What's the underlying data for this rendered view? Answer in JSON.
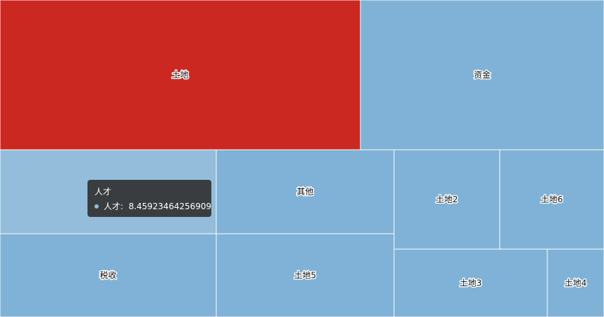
{
  "chart_data": {
    "type": "treemap",
    "colors": {
      "default": "#7fb2d6",
      "highlight": "#cc2822",
      "hover": "#93bdda",
      "border": "#ffffff"
    },
    "items": [
      {
        "name": "土地",
        "value": 30.8,
        "color": "#cc2822"
      },
      {
        "name": "资金",
        "value": 19.5
      },
      {
        "name": "人才",
        "value": 8.45923464256909,
        "hover": true
      },
      {
        "name": "税收",
        "value": 8.7
      },
      {
        "name": "其他",
        "value": 8.6
      },
      {
        "name": "土地5",
        "value": 8.4
      },
      {
        "name": "土地2",
        "value": 5.7
      },
      {
        "name": "土地6",
        "value": 5.6
      },
      {
        "name": "土地3",
        "value": 6.3
      },
      {
        "name": "土地4",
        "value": 2.3
      }
    ]
  },
  "tooltip": {
    "title": "人才",
    "series_name": "人才",
    "value": "8.45923464256909",
    "dot_color": "#93bdda"
  }
}
